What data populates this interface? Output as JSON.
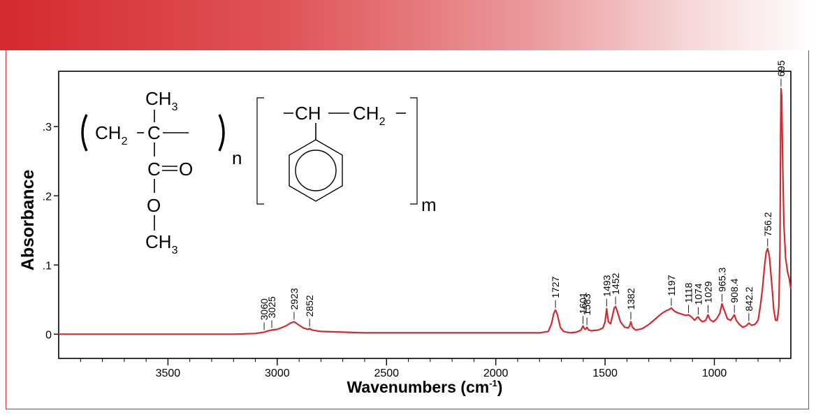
{
  "chart_data": {
    "type": "line",
    "xlabel": "Wavenumbers (cm",
    "xlabel_sup": "-1",
    "xlabel_close": ")",
    "ylabel": "Absorbance",
    "xlim": [
      4000,
      650
    ],
    "ylim": [
      -0.035,
      0.38
    ],
    "x_ticks": [
      3500,
      3000,
      2500,
      2000,
      1500,
      1000
    ],
    "x_tick_labels": [
      "3500",
      "3000",
      "2500",
      "2000",
      "1500",
      "1000"
    ],
    "y_ticks": [
      0,
      0.1,
      0.2,
      0.3
    ],
    "y_tick_labels": [
      "0",
      ".1",
      ".2",
      ".3"
    ],
    "grid": false,
    "line_color": "#d42a2f",
    "series": [
      {
        "x": [
          4000,
          3800,
          3600,
          3400,
          3200,
          3100,
          3060,
          3040,
          3025,
          3000,
          2960,
          2940,
          2923,
          2900,
          2880,
          2860,
          2852,
          2840,
          2800,
          2700,
          2600,
          2400,
          2200,
          2000,
          1900,
          1800,
          1760,
          1745,
          1735,
          1727,
          1718,
          1705,
          1690,
          1660,
          1630,
          1610,
          1601,
          1595,
          1590,
          1583,
          1575,
          1560,
          1530,
          1510,
          1500,
          1493,
          1485,
          1475,
          1465,
          1458,
          1452,
          1444,
          1430,
          1410,
          1395,
          1388,
          1382,
          1375,
          1360,
          1330,
          1300,
          1270,
          1240,
          1220,
          1205,
          1197,
          1185,
          1170,
          1150,
          1130,
          1118,
          1105,
          1090,
          1080,
          1074,
          1066,
          1055,
          1040,
          1029,
          1020,
          1005,
          990,
          975,
          965.3,
          955,
          940,
          925,
          915,
          908.4,
          900,
          885,
          870,
          855,
          842.2,
          830,
          815,
          800,
          790,
          780,
          770,
          763,
          756.2,
          748,
          738,
          728,
          720,
          712,
          705,
          700,
          697,
          695,
          692,
          688,
          682,
          674,
          665,
          657,
          650
        ],
        "y": [
          0.0,
          0.0,
          0.0,
          0.0,
          0.0,
          0.001,
          0.003,
          0.005,
          0.006,
          0.007,
          0.012,
          0.016,
          0.018,
          0.013,
          0.009,
          0.007,
          0.008,
          0.006,
          0.004,
          0.003,
          0.002,
          0.002,
          0.002,
          0.002,
          0.002,
          0.002,
          0.004,
          0.015,
          0.03,
          0.035,
          0.028,
          0.01,
          0.004,
          0.002,
          0.003,
          0.006,
          0.012,
          0.008,
          0.007,
          0.01,
          0.006,
          0.005,
          0.006,
          0.009,
          0.018,
          0.037,
          0.018,
          0.015,
          0.028,
          0.038,
          0.04,
          0.033,
          0.018,
          0.01,
          0.009,
          0.012,
          0.018,
          0.01,
          0.006,
          0.008,
          0.014,
          0.022,
          0.03,
          0.034,
          0.036,
          0.038,
          0.034,
          0.031,
          0.029,
          0.027,
          0.028,
          0.025,
          0.02,
          0.024,
          0.025,
          0.021,
          0.018,
          0.02,
          0.028,
          0.021,
          0.018,
          0.022,
          0.03,
          0.044,
          0.035,
          0.022,
          0.02,
          0.025,
          0.028,
          0.02,
          0.014,
          0.01,
          0.012,
          0.016,
          0.013,
          0.014,
          0.02,
          0.04,
          0.065,
          0.1,
          0.118,
          0.124,
          0.112,
          0.075,
          0.035,
          0.02,
          0.02,
          0.04,
          0.12,
          0.28,
          0.355,
          0.345,
          0.26,
          0.16,
          0.11,
          0.09,
          0.08,
          0.065
        ]
      }
    ],
    "peak_labels": [
      {
        "x": 3060,
        "text": "3060"
      },
      {
        "x": 3025,
        "text": "3025"
      },
      {
        "x": 2923,
        "text": "2923"
      },
      {
        "x": 2852,
        "text": "2852"
      },
      {
        "x": 1727,
        "text": "1727"
      },
      {
        "x": 1601,
        "text": "1601"
      },
      {
        "x": 1583,
        "text": "1583"
      },
      {
        "x": 1493,
        "text": "1493"
      },
      {
        "x": 1452,
        "text": "1452"
      },
      {
        "x": 1382,
        "text": "1382"
      },
      {
        "x": 1197,
        "text": "1197"
      },
      {
        "x": 1118,
        "text": "1118"
      },
      {
        "x": 1074,
        "text": "1074"
      },
      {
        "x": 1029,
        "text": "1029"
      },
      {
        "x": 965.3,
        "text": "965.3"
      },
      {
        "x": 908.4,
        "text": "908.4"
      },
      {
        "x": 842.2,
        "text": "842.2"
      },
      {
        "x": 756.2,
        "text": "756.2"
      },
      {
        "x": 695,
        "text": "695"
      }
    ]
  },
  "structure": {
    "pmma": {
      "ch3_top": "CH",
      "ch3_top_sub": "3",
      "ch2": "CH",
      "ch2_sub": "2",
      "c_center": "C",
      "c_carbonyl": "C",
      "o_double": "O",
      "o_ester": "O",
      "ch3_bottom": "CH",
      "ch3_bottom_sub": "3",
      "repeat": "n"
    },
    "ps": {
      "ch": "CH",
      "ch2": "CH",
      "ch2_sub": "2",
      "repeat": "m"
    }
  }
}
